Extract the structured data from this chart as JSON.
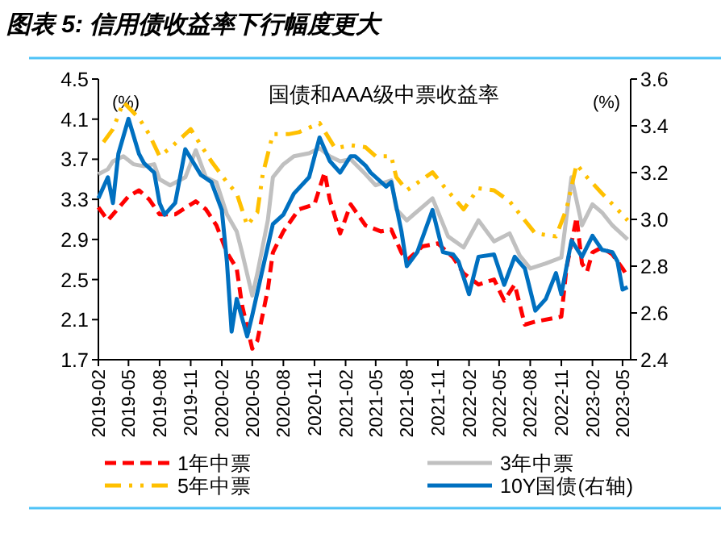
{
  "chart_data": {
    "type": "line",
    "title": "图表 5: 信用债收益率下行幅度更大",
    "subtitle": "国债和AAA级中票收益率",
    "ylabel": "(%)",
    "y2label": "(%)",
    "xlim": [
      "2019-02",
      "2023-05-25"
    ],
    "xticks": [
      "2019-02",
      "2019-05",
      "2019-08",
      "2019-11",
      "2020-02",
      "2020-05",
      "2020-08",
      "2020-11",
      "2021-02",
      "2021-05",
      "2021-08",
      "2021-11",
      "2022-02",
      "2022-05",
      "2022-08",
      "2022-11",
      "2023-02",
      "2023-05"
    ],
    "ylim": [
      1.7,
      4.5
    ],
    "yticks": [
      1.7,
      2.1,
      2.5,
      2.9,
      3.3,
      3.7,
      4.1,
      4.5
    ],
    "y2lim": [
      2.4,
      3.6
    ],
    "y2ticks": [
      2.4,
      2.6,
      2.8,
      {
        "value": 3,
        "label": "3.0"
      },
      3.2,
      3.4,
      3.6
    ],
    "grid": false,
    "legend": "bottom",
    "marker": "none",
    "series": [
      {
        "name": "1年中票",
        "color": "#ff0000",
        "line_style": "dashed",
        "x": [
          "2019-02-01",
          "2019-03-01",
          "2019-05-01",
          "2019-06-01",
          "2019-07-01",
          "2019-08-01",
          "2019-09-16",
          "2019-11-16",
          "2019-12-16",
          "2020-01-16",
          "2020-02-16",
          "2020-03-16",
          "2020-04-01",
          "2020-05-01",
          "2020-05-16",
          "2020-06-16",
          "2020-07-01",
          "2020-08-01",
          "2020-09-16",
          "2020-11-01",
          "2020-12-01",
          "2020-12-16",
          "2021-01-16",
          "2021-02-16",
          "2021-04-01",
          "2021-05-16",
          "2021-06-16",
          "2021-07-16",
          "2021-08-01",
          "2021-09-16",
          "2021-11-01",
          "2021-12-16",
          "2022-01-16",
          "2022-03-01",
          "2022-04-16",
          "2022-05-16",
          "2022-06-16",
          "2022-07-16",
          "2022-08-16",
          "2022-11-01",
          "2022-11-16",
          "2022-12-16",
          "2023-01-01",
          "2023-01-16",
          "2023-02-01",
          "2023-03-01",
          "2023-04-01",
          "2023-05-01",
          "2023-05-16"
        ],
        "values": [
          3.22,
          3.09,
          3.33,
          3.39,
          3.3,
          3.15,
          3.15,
          3.28,
          3.2,
          3.04,
          2.77,
          2.61,
          2.24,
          1.81,
          1.89,
          2.4,
          2.77,
          2.98,
          3.2,
          3.25,
          3.57,
          3.3,
          2.96,
          3.25,
          3.04,
          2.98,
          3.0,
          2.77,
          2.69,
          2.83,
          2.86,
          2.72,
          2.56,
          2.45,
          2.5,
          2.29,
          2.45,
          2.05,
          2.08,
          2.13,
          2.61,
          3.12,
          2.66,
          2.58,
          2.77,
          2.82,
          2.75,
          2.61,
          2.53
        ]
      },
      {
        "name": "3年中票",
        "color": "#c0c0c0",
        "line_style": "solid",
        "x": [
          "2019-02-01",
          "2019-03-01",
          "2019-03-16",
          "2019-04-16",
          "2019-05-16",
          "2019-06-16",
          "2019-07-16",
          "2019-08-01",
          "2019-09-01",
          "2019-10-16",
          "2019-11-16",
          "2019-12-16",
          "2020-01-16",
          "2020-02-16",
          "2020-03-16",
          "2020-04-01",
          "2020-05-01",
          "2020-05-16",
          "2020-06-16",
          "2020-07-01",
          "2020-08-01",
          "2020-09-01",
          "2020-10-16",
          "2020-11-16",
          "2020-12-16",
          "2021-01-16",
          "2021-02-16",
          "2021-04-01",
          "2021-05-01",
          "2021-06-16",
          "2021-07-01",
          "2021-08-01",
          "2021-10-16",
          "2021-12-01",
          "2022-01-16",
          "2022-03-01",
          "2022-04-16",
          "2022-06-01",
          "2022-07-01",
          "2022-08-01",
          "2022-09-16",
          "2022-11-01",
          "2022-12-01",
          "2023-01-01",
          "2023-02-01",
          "2023-03-01",
          "2023-04-01",
          "2023-05-16"
        ],
        "values": [
          3.55,
          3.6,
          3.68,
          3.73,
          3.65,
          3.63,
          3.65,
          3.5,
          3.44,
          3.52,
          3.79,
          3.52,
          3.47,
          3.15,
          2.98,
          2.77,
          2.34,
          2.56,
          3.09,
          3.52,
          3.65,
          3.73,
          3.76,
          3.81,
          3.73,
          3.68,
          3.7,
          3.55,
          3.44,
          3.49,
          3.2,
          3.09,
          3.31,
          2.93,
          2.82,
          3.09,
          2.88,
          2.96,
          2.74,
          2.61,
          2.66,
          2.72,
          3.52,
          3.04,
          3.25,
          3.17,
          3.04,
          2.9
        ]
      },
      {
        "name": "5年中票",
        "color": "#ffc000",
        "line_style": "dotted",
        "x": [
          "2019-02-16",
          "2019-03-16",
          "2019-04-16",
          "2019-06-01",
          "2019-07-01",
          "2019-08-01",
          "2019-09-01",
          "2019-11-01",
          "2019-12-01",
          "2020-01-01",
          "2020-02-16",
          "2020-03-16",
          "2020-04-16",
          "2020-05-16",
          "2020-06-01",
          "2020-07-01",
          "2020-08-16",
          "2020-09-16",
          "2020-11-16",
          "2021-01-01",
          "2021-02-16",
          "2021-04-01",
          "2021-05-01",
          "2021-06-16",
          "2021-07-01",
          "2021-08-01",
          "2021-10-16",
          "2021-11-16",
          "2022-01-16",
          "2022-03-01",
          "2022-04-16",
          "2022-06-01",
          "2022-07-16",
          "2022-08-16",
          "2022-10-16",
          "2022-11-16",
          "2022-12-16",
          "2023-01-16",
          "2023-03-01",
          "2023-04-16",
          "2023-05-16"
        ],
        "values": [
          3.87,
          4.0,
          4.27,
          4.11,
          3.95,
          3.73,
          3.81,
          4.0,
          3.84,
          3.68,
          3.47,
          3.36,
          3.04,
          3.17,
          3.55,
          3.95,
          3.95,
          3.97,
          4.06,
          3.81,
          3.84,
          3.82,
          3.73,
          3.73,
          3.52,
          3.39,
          3.57,
          3.44,
          3.2,
          3.41,
          3.39,
          3.28,
          3.09,
          2.96,
          2.93,
          3.2,
          3.65,
          3.52,
          3.36,
          3.2,
          3.09
        ]
      },
      {
        "name": "10Y国债(右轴)",
        "color": "#0070c0",
        "line_style": "solid",
        "axis": "y2",
        "x": [
          "2019-02-01",
          "2019-03-01",
          "2019-03-16",
          "2019-04-01",
          "2019-05-01",
          "2019-06-01",
          "2019-06-16",
          "2019-07-16",
          "2019-08-01",
          "2019-08-16",
          "2019-09-16",
          "2019-10-16",
          "2019-12-01",
          "2020-01-01",
          "2020-02-01",
          "2020-02-16",
          "2020-03-01",
          "2020-03-16",
          "2020-04-16",
          "2020-05-01",
          "2020-06-01",
          "2020-07-01",
          "2020-08-01",
          "2020-09-01",
          "2020-10-16",
          "2020-11-16",
          "2020-12-16",
          "2021-01-16",
          "2021-02-16",
          "2021-03-01",
          "2021-04-01",
          "2021-04-16",
          "2021-06-01",
          "2021-06-16",
          "2021-07-16",
          "2021-08-01",
          "2021-09-01",
          "2021-10-16",
          "2021-11-16",
          "2021-12-16",
          "2022-01-01",
          "2022-02-01",
          "2022-03-01",
          "2022-04-16",
          "2022-05-16",
          "2022-06-16",
          "2022-07-16",
          "2022-08-16",
          "2022-09-16",
          "2022-10-16",
          "2022-11-01",
          "2022-12-01",
          "2023-01-01",
          "2023-02-01",
          "2023-03-01",
          "2023-04-01",
          "2023-04-16",
          "2023-05-01",
          "2023-05-16"
        ],
        "values": [
          3.09,
          3.18,
          3.07,
          3.28,
          3.43,
          3.28,
          3.24,
          3.2,
          3.07,
          3.02,
          3.07,
          3.3,
          3.19,
          3.16,
          3.04,
          2.82,
          2.52,
          2.66,
          2.5,
          2.59,
          2.79,
          2.98,
          3.02,
          3.11,
          3.18,
          3.35,
          3.25,
          3.2,
          3.27,
          3.27,
          3.23,
          3.2,
          3.14,
          3.16,
          2.95,
          2.8,
          2.86,
          3.04,
          2.86,
          2.85,
          2.82,
          2.68,
          2.84,
          2.85,
          2.72,
          2.84,
          2.79,
          2.61,
          2.66,
          2.77,
          2.68,
          2.91,
          2.84,
          2.93,
          2.87,
          2.86,
          2.82,
          2.7,
          2.71
        ]
      }
    ]
  }
}
